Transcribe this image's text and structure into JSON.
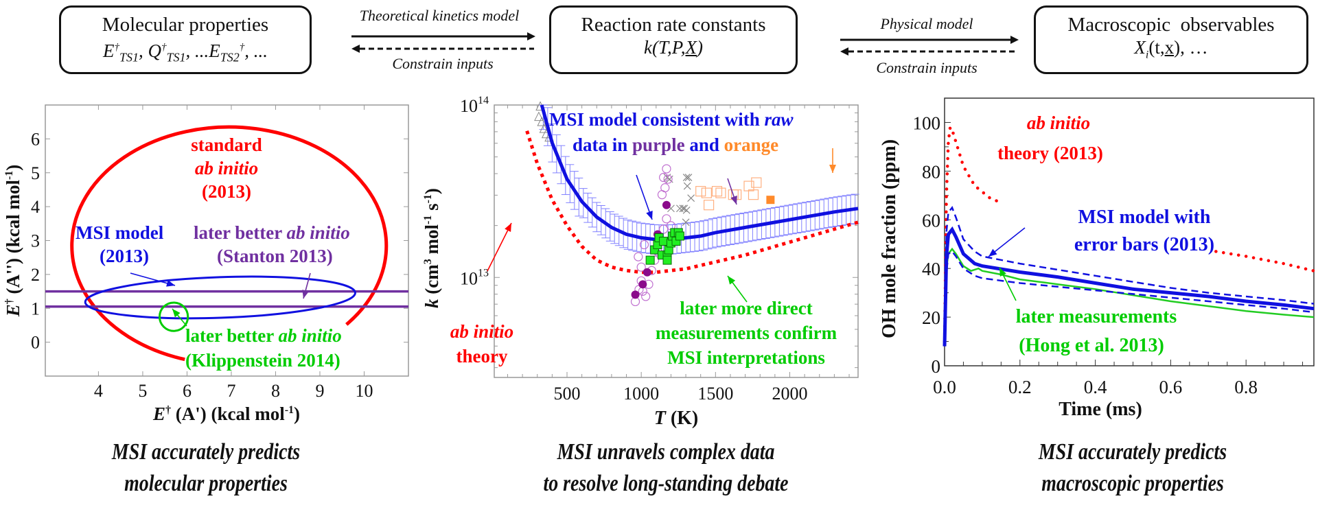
{
  "colors": {
    "red": "#ff0000",
    "blue": "#1010e0",
    "purple": "#7030a0",
    "green": "#00cc00",
    "orange": "#ff8a2a",
    "light_blue": "#8080ff",
    "gray": "#888888"
  },
  "flow": {
    "box1": {
      "title": "Molecular properties",
      "formula": "E†TS1, Q†TS1, ...ETS2†, ..."
    },
    "arrow1": {
      "forward_label": "Theoretical kinetics model",
      "backward_label": "Constrain inputs"
    },
    "box2": {
      "title": "Reaction rate constants",
      "formula": "k(T,P,X)"
    },
    "arrow2": {
      "forward_label": "Physical model",
      "backward_label": "Constrain inputs"
    },
    "box3": {
      "title": "Macroscopic  observables",
      "formula": "Xi(t,x), …"
    }
  },
  "captions": {
    "left": [
      "MSI accurately predicts",
      "molecular properties"
    ],
    "middle": [
      "MSI unravels complex data",
      "to resolve long-standing debate"
    ],
    "right": [
      "MSI accurately predicts",
      "macroscopic properties"
    ]
  },
  "chart_data": [
    {
      "type": "scatter",
      "title": "",
      "xlabel": "E† (A') (kcal mol-1)",
      "ylabel": "E† (A'') (kcal mol-1)",
      "xlim": [
        2.8,
        11.0
      ],
      "ylim": [
        -1.0,
        7.0
      ],
      "xticks": [
        4,
        5,
        6,
        7,
        8,
        9,
        10
      ],
      "yticks": [
        0,
        1,
        2,
        3,
        4,
        5,
        6
      ],
      "series": [
        {
          "name": "standard ab initio (2013)",
          "shape": "ellipse-arc",
          "color": "red",
          "center": [
            6.95,
            2.85
          ],
          "radii": [
            3.55,
            3.5
          ],
          "gap_between_x": [
            5.95,
            9.6
          ]
        },
        {
          "name": "MSI model (2013)",
          "shape": "ellipse",
          "color": "blue",
          "center": [
            6.75,
            1.32
          ],
          "radii": [
            3.05,
            0.6
          ]
        },
        {
          "name": "later better ab initio (Stanton 2013)",
          "shape": "hlines",
          "color": "purple",
          "y": [
            1.5,
            1.05
          ]
        },
        {
          "name": "later better ab initio (Klippenstein 2014)",
          "shape": "circle",
          "color": "green",
          "center": [
            5.7,
            0.75
          ],
          "radius": 0.32
        }
      ],
      "annotations": [
        {
          "text_lines": [
            "standard",
            "ab initio",
            "(2013)"
          ],
          "color": "red"
        },
        {
          "text_lines": [
            "MSI model",
            "(2013)"
          ],
          "color": "blue"
        },
        {
          "text_lines": [
            "later better ab initio",
            "(Stanton 2013)"
          ],
          "color": "purple"
        },
        {
          "text_lines": [
            "later better ab initio",
            "(Klippenstein 2014)"
          ],
          "color": "green"
        }
      ]
    },
    {
      "type": "line",
      "title": "",
      "xlabel": "T (K)",
      "ylabel": "k (cm3 mol-1 s-1)",
      "xlim": [
        10,
        2460
      ],
      "ylim_log10": [
        12.42,
        14.0
      ],
      "xticks": [
        500,
        1000,
        1500,
        2000
      ],
      "ytick_labels": [
        "10^14",
        "10^13"
      ],
      "series": [
        {
          "name": "MSI model",
          "style": "solid",
          "color": "blue",
          "x": [
            330,
            400,
            500,
            600,
            700,
            800,
            900,
            1000,
            1100,
            1200,
            1300,
            1400,
            1500,
            1700,
            1900,
            2100,
            2300,
            2460
          ],
          "log10_y": [
            14.0,
            13.78,
            13.57,
            13.44,
            13.35,
            13.29,
            13.25,
            13.23,
            13.22,
            13.22,
            13.23,
            13.24,
            13.26,
            13.29,
            13.32,
            13.35,
            13.38,
            13.4
          ]
        },
        {
          "name": "MSI error band (+/-)",
          "style": "errorbars",
          "color": "light_blue",
          "log10_halfwidth": 0.085
        },
        {
          "name": "ab initio theory",
          "style": "dotted",
          "color": "red",
          "x": [
            230,
            300,
            400,
            500,
            600,
            700,
            800,
            900,
            1000,
            1100,
            1200,
            1300,
            1500,
            1700,
            1900,
            2100,
            2300,
            2460
          ],
          "log10_y": [
            13.85,
            13.66,
            13.45,
            13.3,
            13.18,
            13.1,
            13.06,
            13.04,
            13.03,
            13.03,
            13.04,
            13.05,
            13.09,
            13.13,
            13.18,
            13.23,
            13.28,
            13.32
          ]
        },
        {
          "name": "raw data (purple, open)",
          "style": "markers-open-circle",
          "color": "purple",
          "points": [
            [
              960,
              12.86
            ],
            [
              985,
              12.93
            ],
            [
              1000,
              12.98
            ],
            [
              1010,
              12.92
            ],
            [
              1030,
              12.89
            ],
            [
              1050,
              12.96
            ],
            [
              1070,
              13.04
            ],
            [
              1090,
              13.1
            ],
            [
              1110,
              13.15
            ],
            [
              1130,
              13.21
            ],
            [
              1150,
              13.28
            ],
            [
              1170,
              13.34
            ],
            [
              1140,
              13.48
            ],
            [
              1160,
              13.52
            ],
            [
              1150,
              13.58
            ],
            [
              1170,
              13.63
            ],
            [
              1180,
              13.57
            ],
            [
              1000,
              13.06
            ],
            [
              980,
              13.12
            ],
            [
              1020,
              13.19
            ],
            [
              1200,
              13.3
            ]
          ]
        },
        {
          "name": "raw data (purple, filled)",
          "style": "markers-filled-circle",
          "color": "purple",
          "points": [
            [
              960,
              12.9
            ],
            [
              1010,
              12.96
            ],
            [
              1040,
              13.03
            ],
            [
              1110,
              13.25
            ],
            [
              1170,
              13.42
            ]
          ]
        },
        {
          "name": "other data",
          "style": "markers-x",
          "color": "gray",
          "points": [
            [
              1175,
              13.58
            ],
            [
              1190,
              13.57
            ],
            [
              1305,
              13.58
            ],
            [
              1318,
              13.58
            ],
            [
              1310,
              13.53
            ],
            [
              1335,
              13.46
            ],
            [
              1200,
              13.4
            ],
            [
              1260,
              13.4
            ],
            [
              1280,
              13.4
            ],
            [
              1290,
              13.4
            ],
            [
              1305,
              13.39
            ],
            [
              1300,
              13.32
            ]
          ]
        },
        {
          "name": "raw data (orange)",
          "style": "markers-open-square",
          "color": "orange",
          "points": [
            [
              1400,
              13.5
            ],
            [
              1440,
              13.49
            ],
            [
              1455,
              13.42
            ],
            [
              1510,
              13.5
            ],
            [
              1535,
              13.49
            ],
            [
              1620,
              13.48
            ],
            [
              1640,
              13.48
            ],
            [
              1725,
              13.53
            ],
            [
              1755,
              13.48
            ],
            [
              1775,
              13.55
            ]
          ]
        },
        {
          "name": "orange highlighted",
          "style": "markers-filled-square",
          "color": "orange",
          "points": [
            [
              1870,
              13.45
            ]
          ]
        },
        {
          "name": "later more direct measurements",
          "style": "markers-filled-square",
          "color": "green",
          "points": [
            [
              1060,
              13.1
            ],
            [
              1090,
              13.16
            ],
            [
              1110,
              13.19
            ],
            [
              1120,
              13.23
            ],
            [
              1140,
              13.13
            ],
            [
              1150,
              13.21
            ],
            [
              1175,
              13.13
            ],
            [
              1185,
              13.16
            ],
            [
              1200,
              13.2
            ],
            [
              1210,
              13.24
            ],
            [
              1225,
              13.26
            ],
            [
              1235,
              13.21
            ],
            [
              1250,
              13.26
            ],
            [
              1260,
              13.24
            ],
            [
              1175,
              13.1
            ]
          ]
        },
        {
          "name": "early data (triangles)",
          "style": "markers-open-triangle",
          "color": "gray",
          "points": [
            [
              320,
              13.99
            ],
            [
              310,
              13.93
            ],
            [
              330,
              13.9
            ],
            [
              345,
              13.86
            ],
            [
              360,
              13.83
            ],
            [
              380,
              13.81
            ]
          ]
        }
      ],
      "annotations": [
        {
          "segments": [
            [
              "MSI model consistent with ",
              "blue",
              false
            ],
            [
              "raw",
              "blue",
              true
            ]
          ]
        },
        {
          "segments": [
            [
              "data in ",
              "blue",
              false
            ],
            [
              "purple",
              "purple",
              false
            ],
            [
              " and ",
              "blue",
              false
            ],
            [
              "orange",
              "orange",
              false
            ]
          ]
        },
        {
          "text_lines": [
            "ab initio",
            "theory"
          ],
          "color": "red"
        },
        {
          "text_lines": [
            "later more direct",
            "measurements confirm",
            "MSI interpretations"
          ],
          "color": "green"
        }
      ]
    },
    {
      "type": "line",
      "title": "",
      "xlabel": "Time (ms)",
      "ylabel": "OH mole fraction (ppm)",
      "xlim": [
        0.0,
        0.98
      ],
      "ylim": [
        0,
        110
      ],
      "xticks": [
        0.0,
        0.2,
        0.4,
        0.6,
        0.8
      ],
      "yticks": [
        0,
        20,
        40,
        60,
        80,
        100
      ],
      "series": [
        {
          "name": "ab initio theory (2013)",
          "style": "dotted",
          "color": "red",
          "x": [
            0.0,
            0.005,
            0.01,
            0.015,
            0.02,
            0.03,
            0.05,
            0.08,
            0.12,
            0.15
          ],
          "y": [
            10,
            70,
            92,
            98,
            97,
            92,
            82,
            74,
            69,
            67
          ],
          "x2": [
            0.72,
            0.8,
            0.9,
            0.98
          ],
          "y2": [
            47,
            45,
            42,
            39
          ]
        },
        {
          "name": "MSI model with error bars (2013)",
          "style": "solid",
          "color": "blue",
          "x": [
            0.0,
            0.005,
            0.01,
            0.02,
            0.03,
            0.05,
            0.08,
            0.1,
            0.2,
            0.3,
            0.4,
            0.5,
            0.6,
            0.7,
            0.8,
            0.9,
            0.98
          ],
          "y": [
            8,
            45,
            54,
            56,
            53,
            46,
            42,
            41,
            38.5,
            36.5,
            34,
            31.5,
            30,
            28.5,
            26.5,
            25,
            23.5
          ]
        },
        {
          "name": "MSI upper bound",
          "style": "dashed",
          "color": "blue",
          "x": [
            0.0,
            0.005,
            0.01,
            0.02,
            0.03,
            0.05,
            0.08,
            0.1,
            0.2,
            0.3,
            0.4,
            0.5,
            0.6,
            0.7,
            0.8,
            0.9,
            0.98
          ],
          "y": [
            10,
            55,
            63,
            65,
            61,
            52,
            47,
            45,
            42,
            39.5,
            37,
            34.5,
            32,
            30,
            28.5,
            27,
            25.5
          ]
        },
        {
          "name": "MSI lower bound",
          "style": "dashed",
          "color": "blue",
          "x": [
            0.0,
            0.005,
            0.01,
            0.02,
            0.03,
            0.05,
            0.08,
            0.1,
            0.2,
            0.3,
            0.4,
            0.5,
            0.6,
            0.7,
            0.8,
            0.9,
            0.98
          ],
          "y": [
            8,
            38,
            46,
            47,
            45,
            40,
            37,
            36,
            34,
            32.5,
            31,
            29.5,
            28,
            26.5,
            25,
            23.5,
            22
          ]
        },
        {
          "name": "later measurements (Hong et al. 2013)",
          "style": "solid-thin",
          "color": "green",
          "x": [
            0.0,
            0.005,
            0.01,
            0.02,
            0.03,
            0.05,
            0.07,
            0.09,
            0.1,
            0.15,
            0.2,
            0.3,
            0.4,
            0.5,
            0.6,
            0.7,
            0.8,
            0.9,
            0.98
          ],
          "y": [
            20,
            40,
            46,
            48,
            46,
            41,
            39,
            40,
            39,
            37.5,
            35.5,
            33.5,
            31.5,
            29,
            26.5,
            24.5,
            22.5,
            21,
            20
          ]
        }
      ],
      "annotations": [
        {
          "text_lines": [
            "ab initio",
            "theory (2013)"
          ],
          "color": "red"
        },
        {
          "text_lines": [
            "MSI model with",
            "error bars (2013)"
          ],
          "color": "blue"
        },
        {
          "text_lines": [
            "later measurements",
            "(Hong et al. 2013)"
          ],
          "color": "green"
        }
      ]
    }
  ]
}
